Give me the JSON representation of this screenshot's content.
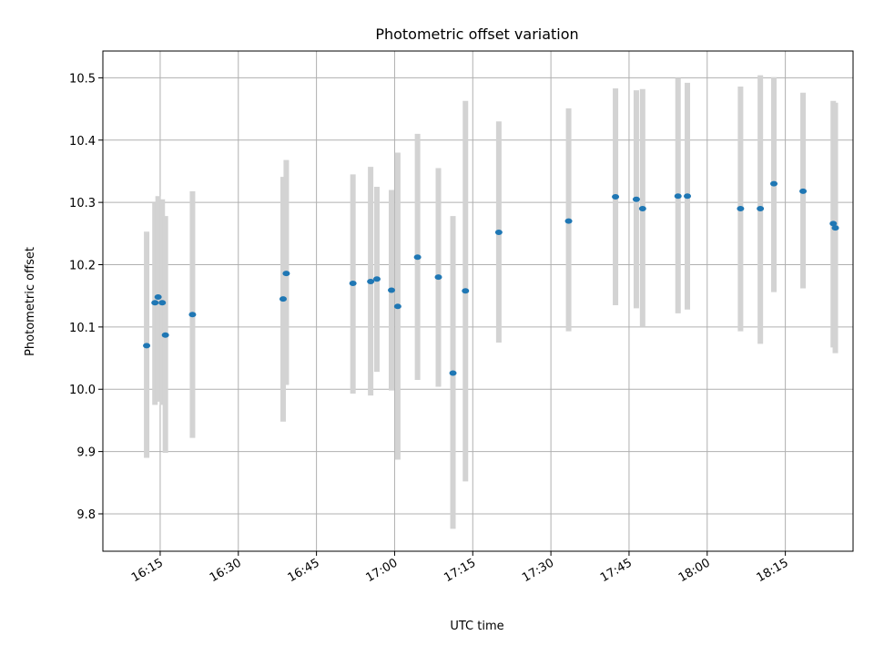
{
  "chart_data": {
    "type": "scatter",
    "title": "Photometric offset variation",
    "xlabel": "UTC time",
    "ylabel": "Photometric offset",
    "x_ticks": [
      "16:15",
      "16:30",
      "16:45",
      "17:00",
      "17:15",
      "17:30",
      "17:45",
      "18:00",
      "18:15"
    ],
    "y_ticks": [
      "9.8",
      "9.9",
      "10.0",
      "10.1",
      "10.2",
      "10.3",
      "10.4",
      "10.5"
    ],
    "xlim": [
      "16:04",
      "18:28"
    ],
    "ylim": [
      9.74,
      10.543
    ],
    "grid": true,
    "marker_color": "#1f77b4",
    "errorbar_color": "#d3d3d3",
    "points": [
      {
        "t": "16:12:24",
        "y": 10.07,
        "lo": 9.89,
        "hi": 10.253
      },
      {
        "t": "16:14:00",
        "y": 10.139,
        "lo": 9.975,
        "hi": 10.3
      },
      {
        "t": "16:14:36",
        "y": 10.148,
        "lo": 9.98,
        "hi": 10.31
      },
      {
        "t": "16:15:24",
        "y": 10.139,
        "lo": 9.975,
        "hi": 10.305
      },
      {
        "t": "16:16:00",
        "y": 10.087,
        "lo": 9.898,
        "hi": 10.278
      },
      {
        "t": "16:21:12",
        "y": 10.12,
        "lo": 9.922,
        "hi": 10.318
      },
      {
        "t": "16:38:36",
        "y": 10.145,
        "lo": 9.948,
        "hi": 10.341
      },
      {
        "t": "16:39:12",
        "y": 10.186,
        "lo": 10.007,
        "hi": 10.368
      },
      {
        "t": "16:52:00",
        "y": 10.17,
        "lo": 9.993,
        "hi": 10.345
      },
      {
        "t": "16:55:24",
        "y": 10.173,
        "lo": 9.99,
        "hi": 10.357
      },
      {
        "t": "16:56:36",
        "y": 10.177,
        "lo": 10.028,
        "hi": 10.325
      },
      {
        "t": "16:59:24",
        "y": 10.159,
        "lo": 9.998,
        "hi": 10.32
      },
      {
        "t": "17:00:36",
        "y": 10.133,
        "lo": 9.887,
        "hi": 10.38
      },
      {
        "t": "17:04:24",
        "y": 10.212,
        "lo": 10.015,
        "hi": 10.41
      },
      {
        "t": "17:08:24",
        "y": 10.18,
        "lo": 10.004,
        "hi": 10.355
      },
      {
        "t": "17:11:12",
        "y": 10.026,
        "lo": 9.776,
        "hi": 10.278
      },
      {
        "t": "17:13:36",
        "y": 10.158,
        "lo": 9.852,
        "hi": 10.463
      },
      {
        "t": "17:20:00",
        "y": 10.252,
        "lo": 10.075,
        "hi": 10.43
      },
      {
        "t": "17:33:24",
        "y": 10.27,
        "lo": 10.093,
        "hi": 10.451
      },
      {
        "t": "17:42:24",
        "y": 10.309,
        "lo": 10.135,
        "hi": 10.483
      },
      {
        "t": "17:46:24",
        "y": 10.305,
        "lo": 10.13,
        "hi": 10.48
      },
      {
        "t": "17:47:36",
        "y": 10.29,
        "lo": 10.1,
        "hi": 10.482
      },
      {
        "t": "17:54:24",
        "y": 10.31,
        "lo": 10.122,
        "hi": 10.5
      },
      {
        "t": "17:56:12",
        "y": 10.31,
        "lo": 10.128,
        "hi": 10.492
      },
      {
        "t": "18:06:24",
        "y": 10.29,
        "lo": 10.093,
        "hi": 10.486
      },
      {
        "t": "18:10:12",
        "y": 10.29,
        "lo": 10.073,
        "hi": 10.504
      },
      {
        "t": "18:12:48",
        "y": 10.33,
        "lo": 10.156,
        "hi": 10.501
      },
      {
        "t": "18:18:24",
        "y": 10.318,
        "lo": 10.162,
        "hi": 10.476
      },
      {
        "t": "18:24:12",
        "y": 10.266,
        "lo": 10.067,
        "hi": 10.463
      },
      {
        "t": "18:24:36",
        "y": 10.259,
        "lo": 10.058,
        "hi": 10.46
      }
    ]
  }
}
